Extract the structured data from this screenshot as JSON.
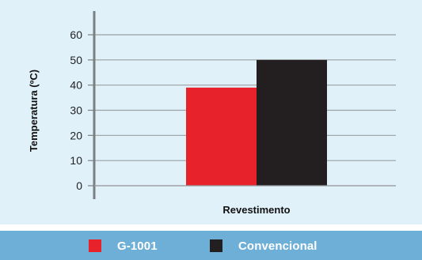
{
  "chart_data": {
    "type": "bar",
    "categories": [
      "Revestimento"
    ],
    "series": [
      {
        "name": "G-1001",
        "values": [
          39
        ],
        "color": "#e8222a"
      },
      {
        "name": "Convencional",
        "values": [
          50
        ],
        "color": "#231f20"
      }
    ],
    "xlabel": "Revestimento",
    "ylabel": "Temperatura (ºC)",
    "ylim": [
      0,
      60
    ],
    "yticks": [
      0,
      10,
      20,
      30,
      40,
      50,
      60
    ],
    "grid": true,
    "legend_position": "bottom"
  },
  "colors": {
    "panel_background": "#e1f1fa",
    "legend_background": "#6eafd7",
    "gridline": "#9aa0a3",
    "axis": "#7a7f82"
  }
}
